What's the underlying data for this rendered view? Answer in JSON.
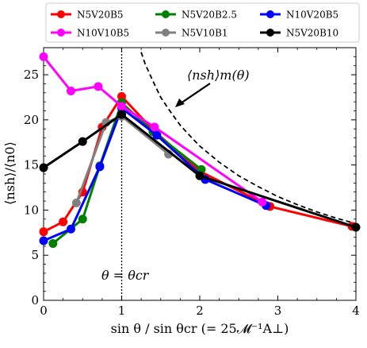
{
  "chart_data": {
    "type": "line",
    "xlabel": "sin θ / sin θcr (= 25𝓜⁻¹A⊥)",
    "ylabel": "⟨nsh⟩/⟨n0⟩",
    "xlim": [
      0,
      4
    ],
    "ylim": [
      0,
      28
    ],
    "xticks": [
      "0",
      "1",
      "2",
      "3",
      "4"
    ],
    "yticks": [
      "0",
      "5",
      "10",
      "15",
      "20",
      "25"
    ],
    "xtick_values": [
      0,
      1,
      2,
      3,
      4
    ],
    "ytick_values": [
      0,
      5,
      10,
      15,
      20,
      25
    ],
    "grid": false,
    "legend_placement": "top, outside",
    "series": [
      {
        "name": "N5V20B5",
        "color": "#ff0000",
        "x": [
          0,
          0.25,
          0.5,
          0.75,
          1.0,
          1.4,
          2.0,
          2.9,
          3.95
        ],
        "y": [
          7.6,
          8.7,
          12.0,
          19.2,
          22.6,
          18.9,
          14.3,
          10.4,
          8.2
        ]
      },
      {
        "name": "N5V20B2.5",
        "color": "#008000",
        "x": [
          0.12,
          0.5,
          0.72,
          1.0,
          1.4,
          2.02
        ],
        "y": [
          6.3,
          9.0,
          14.9,
          21.9,
          18.7,
          14.5
        ]
      },
      {
        "name": "N10V20B5",
        "color": "#0000ff",
        "x": [
          0,
          0.35,
          0.72,
          1.0,
          1.45,
          2.07,
          2.85
        ],
        "y": [
          6.6,
          7.9,
          14.8,
          21.3,
          18.3,
          13.4,
          10.5
        ]
      },
      {
        "name": "N10V10B5",
        "color": "#ff00ff",
        "x": [
          0,
          0.35,
          0.7,
          1.0,
          1.42,
          2.8
        ],
        "y": [
          27.0,
          23.2,
          23.7,
          21.5,
          19.2,
          10.9
        ]
      },
      {
        "name": "N5V10B1",
        "color": "#808080",
        "x": [
          0.42,
          0.8,
          1.0,
          1.6
        ],
        "y": [
          10.8,
          19.7,
          20.4,
          16.2
        ]
      },
      {
        "name": "N5V20B10",
        "color": "#000000",
        "x": [
          0,
          0.5,
          1.0,
          2.0,
          4.0
        ],
        "y": [
          14.7,
          17.6,
          20.6,
          13.8,
          8.1
        ]
      }
    ],
    "reference_curve": {
      "label": "⟨nsh⟩m(θ)",
      "style": "dashed",
      "x": [
        1.25,
        1.3,
        1.4,
        1.5,
        1.6,
        1.75,
        1.9,
        2.0,
        2.25,
        2.5,
        2.75,
        3.0,
        3.25,
        3.5,
        3.75,
        4.0
      ],
      "y": [
        27.5,
        26.2,
        24.3,
        22.5,
        21.2,
        19.4,
        18.0,
        17.1,
        15.3,
        13.8,
        12.6,
        11.5,
        10.6,
        9.8,
        9.1,
        8.5
      ]
    },
    "annotations": [
      {
        "text": "θ = θcr",
        "at_x": 1.0
      }
    ]
  }
}
